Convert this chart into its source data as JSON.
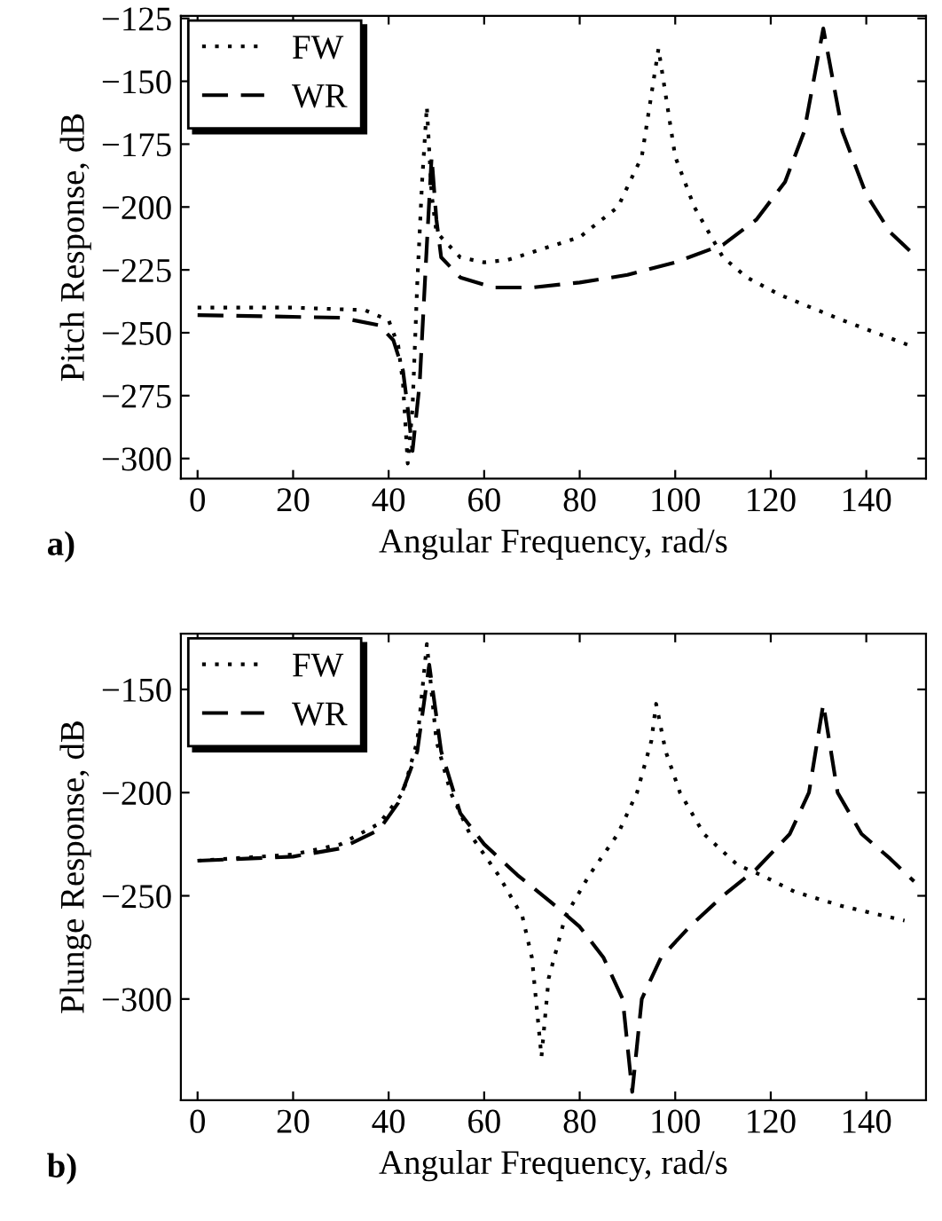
{
  "chart_data": [
    {
      "type": "line",
      "xlabel": "Angular Frequency, rad/s",
      "ylabel": "Pitch Response, dB",
      "annotations": [
        "a)"
      ],
      "xlim": [
        -3.5,
        152.5
      ],
      "ylim": [
        -308,
        -124
      ],
      "xticks": [
        0,
        20,
        40,
        60,
        80,
        100,
        120,
        140
      ],
      "yticks": [
        -300,
        -275,
        -250,
        -225,
        -200,
        -175,
        -150,
        -125
      ],
      "grid": false,
      "legend": "top left",
      "series": [
        {
          "name": "FW",
          "color": "#000000",
          "line_style": "dotted",
          "x": [
            0,
            20,
            35,
            40,
            42,
            43,
            44,
            45,
            46,
            47,
            48,
            49,
            50,
            55,
            60,
            65,
            70,
            80,
            88,
            93,
            96.5,
            100,
            104,
            110,
            115,
            122,
            135,
            149
          ],
          "values": [
            -240,
            -240,
            -241,
            -245,
            -255,
            -270,
            -302,
            -280,
            -230,
            -190,
            -160,
            -195,
            -210,
            -220,
            -222,
            -221,
            -218,
            -212,
            -200,
            -180,
            -137,
            -180,
            -200,
            -220,
            -228,
            -235,
            -245,
            -255
          ]
        },
        {
          "name": "WR",
          "color": "#000000",
          "line_style": "dashed",
          "x": [
            0,
            30,
            38,
            41,
            43,
            44,
            45,
            46.5,
            48,
            49,
            50,
            51,
            55,
            62,
            70,
            80,
            90,
            100,
            110,
            117,
            123,
            127,
            131,
            135,
            140,
            145,
            150
          ],
          "values": [
            -243,
            -244,
            -247,
            -253,
            -265,
            -280,
            -297,
            -270,
            -215,
            -180,
            -205,
            -220,
            -228,
            -232,
            -232,
            -230,
            -227,
            -222,
            -215,
            -205,
            -190,
            -170,
            -129,
            -170,
            -195,
            -210,
            -219
          ]
        }
      ]
    },
    {
      "type": "line",
      "xlabel": "Angular Frequency, rad/s",
      "ylabel": "Plunge Response, dB",
      "annotations": [
        "b)"
      ],
      "xlim": [
        -3.5,
        152.5
      ],
      "ylim": [
        -349,
        -123
      ],
      "xticks": [
        0,
        20,
        40,
        60,
        80,
        100,
        120,
        140
      ],
      "yticks": [
        -300,
        -250,
        -200,
        -150
      ],
      "grid": false,
      "legend": "top left",
      "series": [
        {
          "name": "FW",
          "color": "#000000",
          "line_style": "dotted",
          "x": [
            0,
            20,
            30,
            38,
            43,
            46,
            48,
            50,
            53,
            57,
            63,
            68,
            70,
            72,
            73.5,
            77,
            82,
            88,
            92,
            95,
            96,
            98,
            101,
            106,
            113,
            118,
            125,
            135,
            148
          ],
          "values": [
            -233,
            -230,
            -225,
            -215,
            -200,
            -175,
            -128,
            -175,
            -200,
            -220,
            -240,
            -260,
            -280,
            -328,
            -290,
            -260,
            -240,
            -220,
            -200,
            -175,
            -157,
            -180,
            -200,
            -220,
            -235,
            -240,
            -248,
            -255,
            -262
          ]
        },
        {
          "name": "WR",
          "color": "#000000",
          "line_style": "dashed",
          "x": [
            0,
            20,
            30,
            38,
            42,
            46,
            48.5,
            51,
            55,
            60,
            67,
            75,
            80,
            85,
            89,
            91,
            93,
            97,
            103,
            110,
            117,
            124,
            128,
            131,
            134,
            139,
            145,
            150
          ],
          "values": [
            -233,
            -231,
            -227,
            -218,
            -205,
            -180,
            -138,
            -180,
            -210,
            -225,
            -240,
            -255,
            -265,
            -280,
            -300,
            -345,
            -300,
            -280,
            -265,
            -250,
            -237,
            -220,
            -200,
            -157,
            -200,
            -220,
            -232,
            -243
          ]
        }
      ]
    }
  ]
}
